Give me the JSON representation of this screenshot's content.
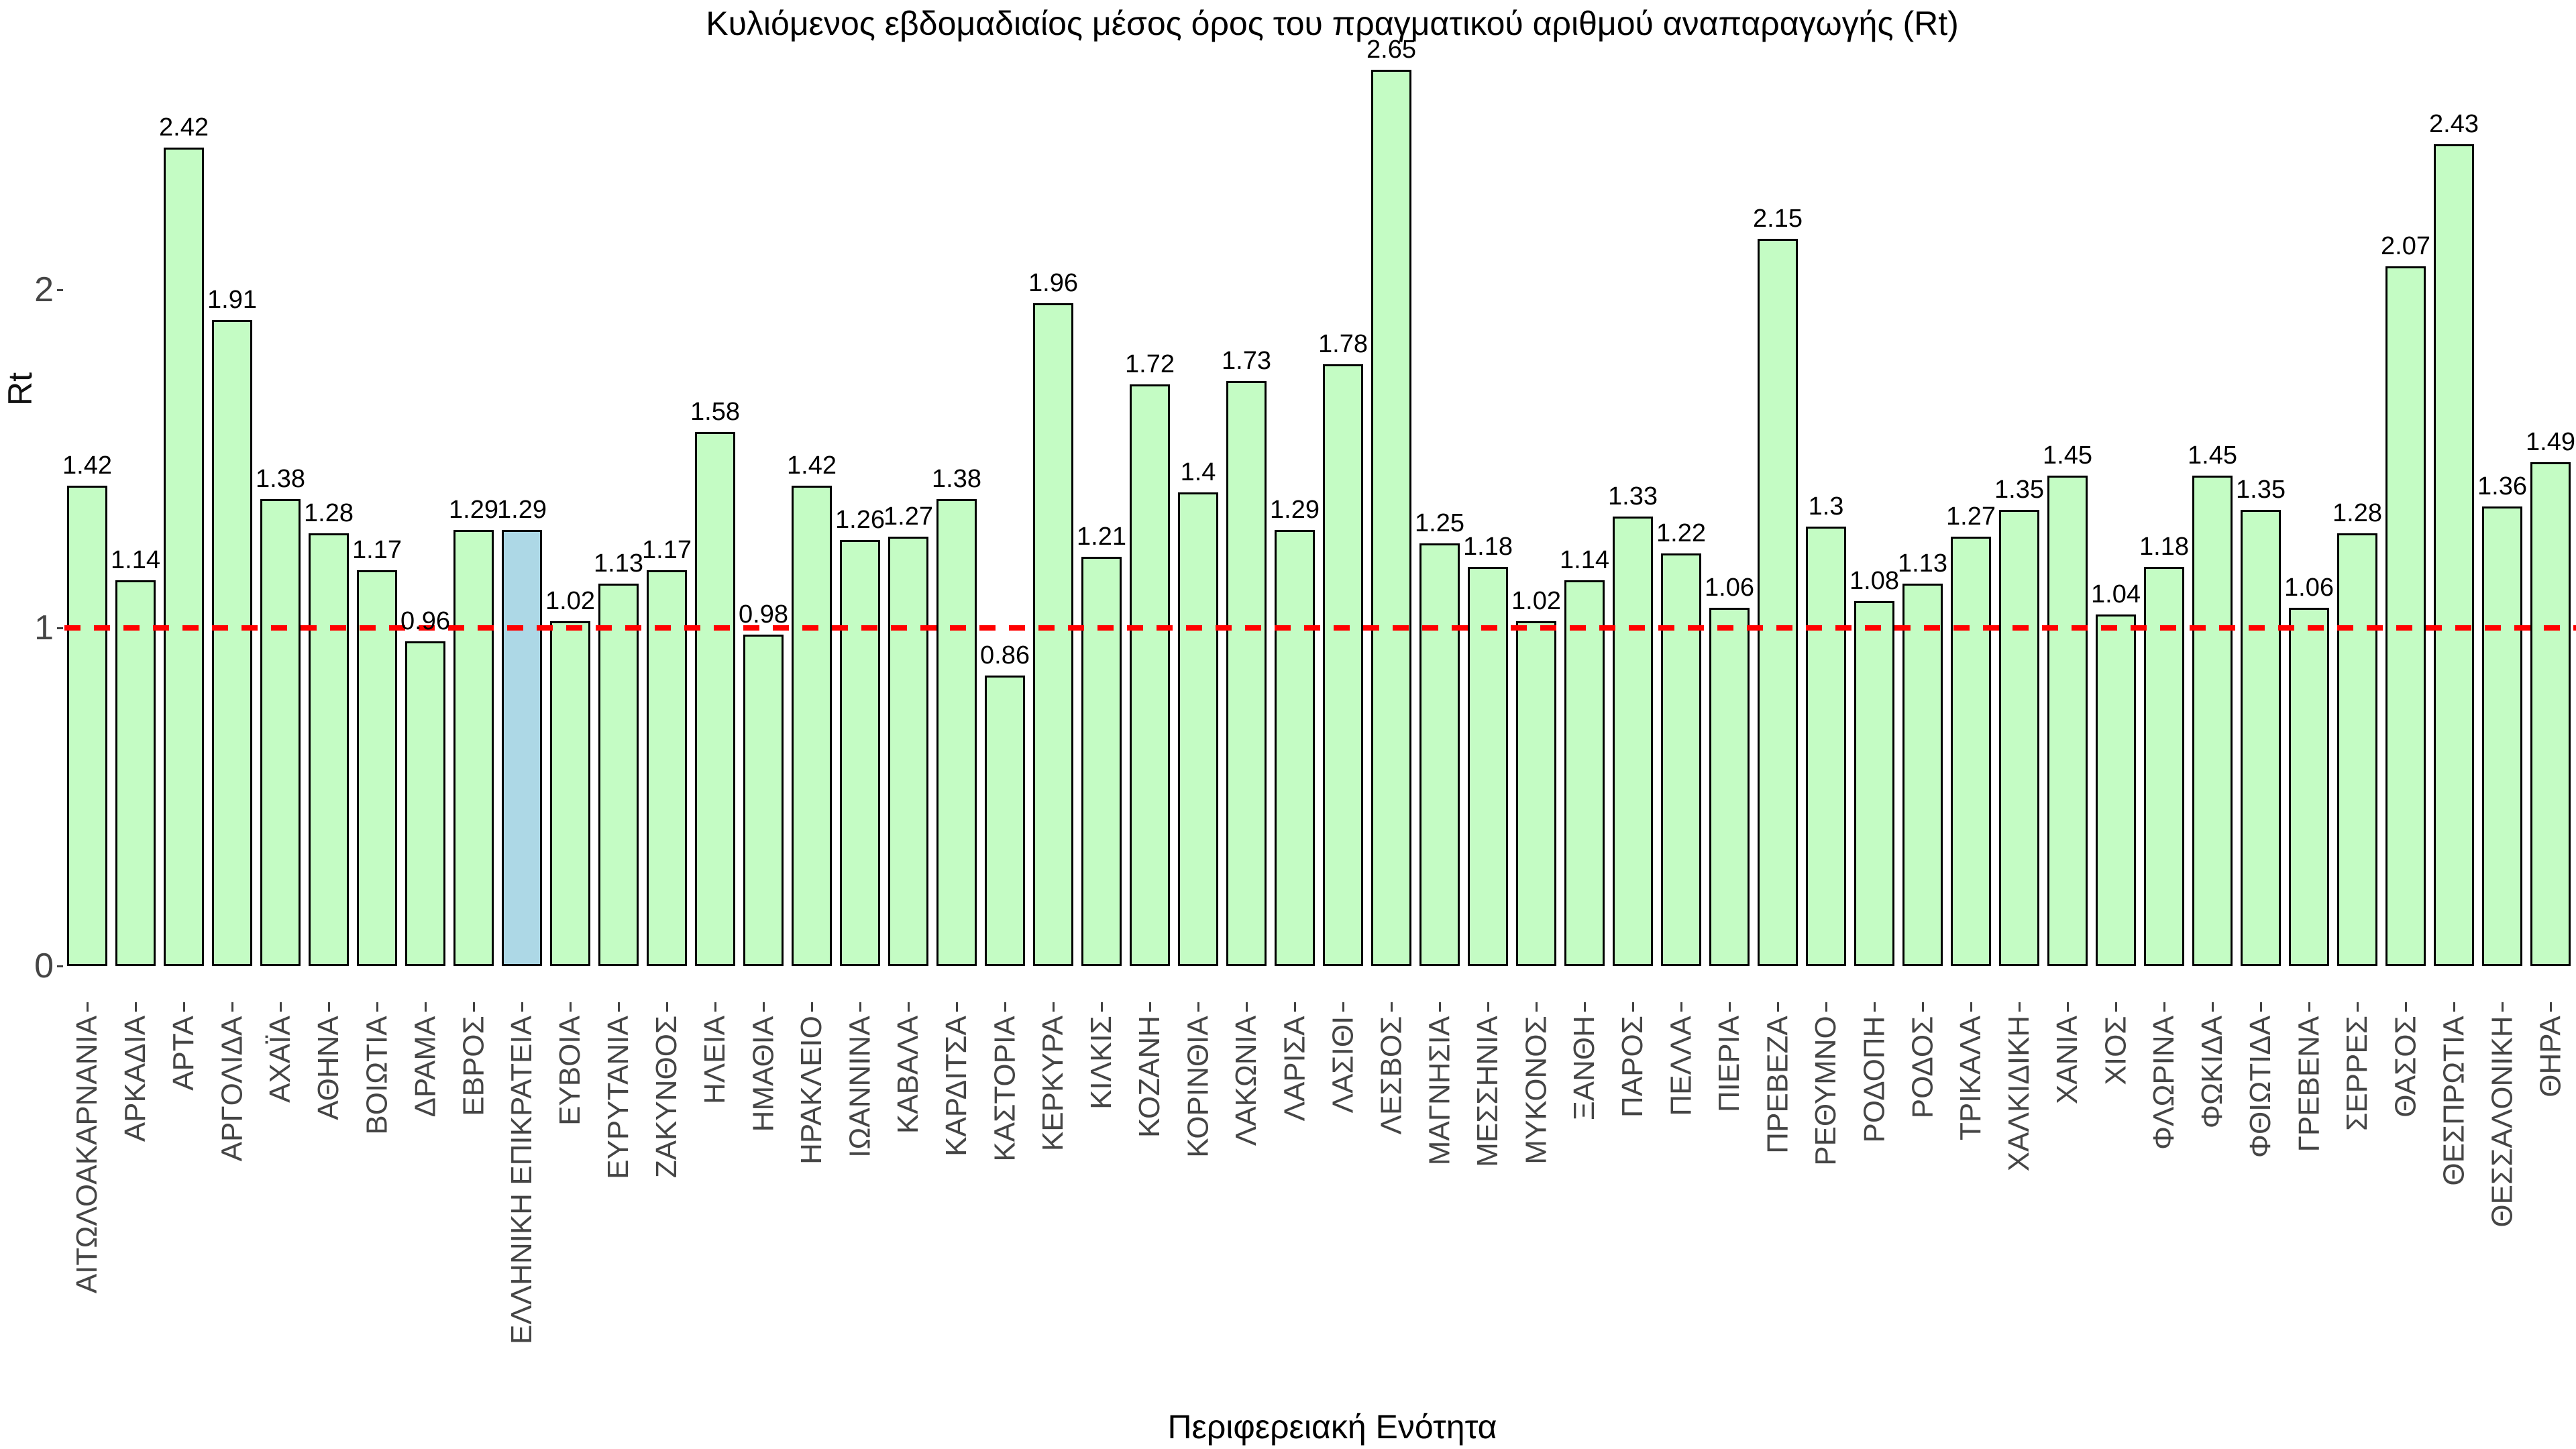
{
  "title": "Κυλιόμενος εβδομαδιαίος μέσος όρος του πραγματικού αριθμού αναπαραγωγής (Rt)",
  "colors": {
    "bar_fill": "#c4fcc4",
    "bar_highlight_fill": "#add8e6",
    "bar_border": "#000000",
    "reference_line": "#ff0000",
    "axis_text": "#454545",
    "value_text": "#000000"
  },
  "chart_data": {
    "type": "bar",
    "title": "Κυλιόμενος εβδομαδιαίος μέσος όρος του πραγματικού αριθμού αναπαραγωγής (Rt)",
    "xlabel": "Περιφερειακή Ενότητα",
    "ylabel": "Rt",
    "ylim": [
      0,
      2.85
    ],
    "yticks": [
      0,
      1,
      2
    ],
    "ytick_labels": [
      "0",
      "1",
      "2"
    ],
    "grid": false,
    "legend": "none",
    "reference_line_y": 1,
    "reference_line_style": "dashed",
    "highlight": {
      "category": "ΕΛΛΗΝΙΚΗ ΕΠΙΚΡΑΤΕΙΑ",
      "color": "#add8e6"
    },
    "categories": [
      "ΑΙΤΩΛΟΑΚΑΡΝΑΝΙΑ",
      "ΑΡΚΑΔΙΑ",
      "ΑΡΤΑ",
      "ΑΡΓΟΛΙΔΑ",
      "ΑΧΑΪΑ",
      "ΑΘΗΝΑ",
      "ΒΟΙΩΤΙΑ",
      "ΔΡΑΜΑ",
      "ΕΒΡΟΣ",
      "ΕΛΛΗΝΙΚΗ ΕΠΙΚΡΑΤΕΙΑ",
      "ΕΥΒΟΙΑ",
      "ΕΥΡΥΤΑΝΙΑ",
      "ΖΑΚΥΝΘΟΣ",
      "ΗΛΕΙΑ",
      "ΗΜΑΘΙΑ",
      "ΗΡΑΚΛΕΙΟ",
      "ΙΩΑΝΝΙΝΑ",
      "ΚΑΒΑΛΑ",
      "ΚΑΡΔΙΤΣΑ",
      "ΚΑΣΤΟΡΙΑ",
      "ΚΕΡΚΥΡΑ",
      "ΚΙΛΚΙΣ",
      "ΚΟΖΑΝΗ",
      "ΚΟΡΙΝΘΙΑ",
      "ΛΑΚΩΝΙΑ",
      "ΛΑΡΙΣΑ",
      "ΛΑΣΙΘΙ",
      "ΛΕΣΒΟΣ",
      "ΜΑΓΝΗΣΙΑ",
      "ΜΕΣΣΗΝΙΑ",
      "ΜΥΚΟΝΟΣ",
      "ΞΑΝΘΗ",
      "ΠΑΡΟΣ",
      "ΠΕΛΛΑ",
      "ΠΙΕΡΙΑ",
      "ΠΡΕΒΕΖΑ",
      "ΡΕΘΥΜΝΟ",
      "ΡΟΔΟΠΗ",
      "ΡΟΔΟΣ",
      "ΤΡΙΚΑΛΑ",
      "ΧΑΛΚΙΔΙΚΗ",
      "ΧΑΝΙΑ",
      "ΧΙΟΣ",
      "ΦΛΩΡΙΝΑ",
      "ΦΩΚΙΔΑ",
      "ΦΘΙΩΤΙΔΑ",
      "ΓΡΕΒΕΝΑ",
      "ΣΕΡΡΕΣ",
      "ΘΑΣΟΣ",
      "ΘΕΣΠΡΩΤΙΑ",
      "ΘΕΣΣΑΛΟΝΙΚΗ",
      "ΘΗΡΑ"
    ],
    "values": [
      1.42,
      1.14,
      2.42,
      1.91,
      1.38,
      1.28,
      1.17,
      0.96,
      1.29,
      1.29,
      1.02,
      1.13,
      1.17,
      1.58,
      0.98,
      1.42,
      1.26,
      1.27,
      1.38,
      0.86,
      1.96,
      1.21,
      1.72,
      1.4,
      1.73,
      1.29,
      1.78,
      2.65,
      1.25,
      1.18,
      1.02,
      1.14,
      1.33,
      1.22,
      1.06,
      2.15,
      1.3,
      1.08,
      1.13,
      1.27,
      1.35,
      1.45,
      1.04,
      1.18,
      1.45,
      1.35,
      1.06,
      1.28,
      2.07,
      2.43,
      1.36,
      1.49
    ],
    "value_labels": [
      "1.42",
      "1.14",
      "2.42",
      "1.91",
      "1.38",
      "1.28",
      "1.17",
      "0.96",
      "1.29",
      "1.29",
      "1.02",
      "1.13",
      "1.17",
      "1.58",
      "0.98",
      "1.42",
      "1.26",
      "1.27",
      "1.38",
      "0.86",
      "1.96",
      "1.21",
      "1.72",
      "1.4",
      "1.73",
      "1.29",
      "1.78",
      "2.65",
      "1.25",
      "1.18",
      "1.02",
      "1.14",
      "1.33",
      "1.22",
      "1.06",
      "2.15",
      "1.3",
      "1.08",
      "1.13",
      "1.27",
      "1.35",
      "1.45",
      "1.04",
      "1.18",
      "1.45",
      "1.35",
      "1.06",
      "1.28",
      "2.07",
      "2.43",
      "1.36",
      "1.49"
    ]
  }
}
